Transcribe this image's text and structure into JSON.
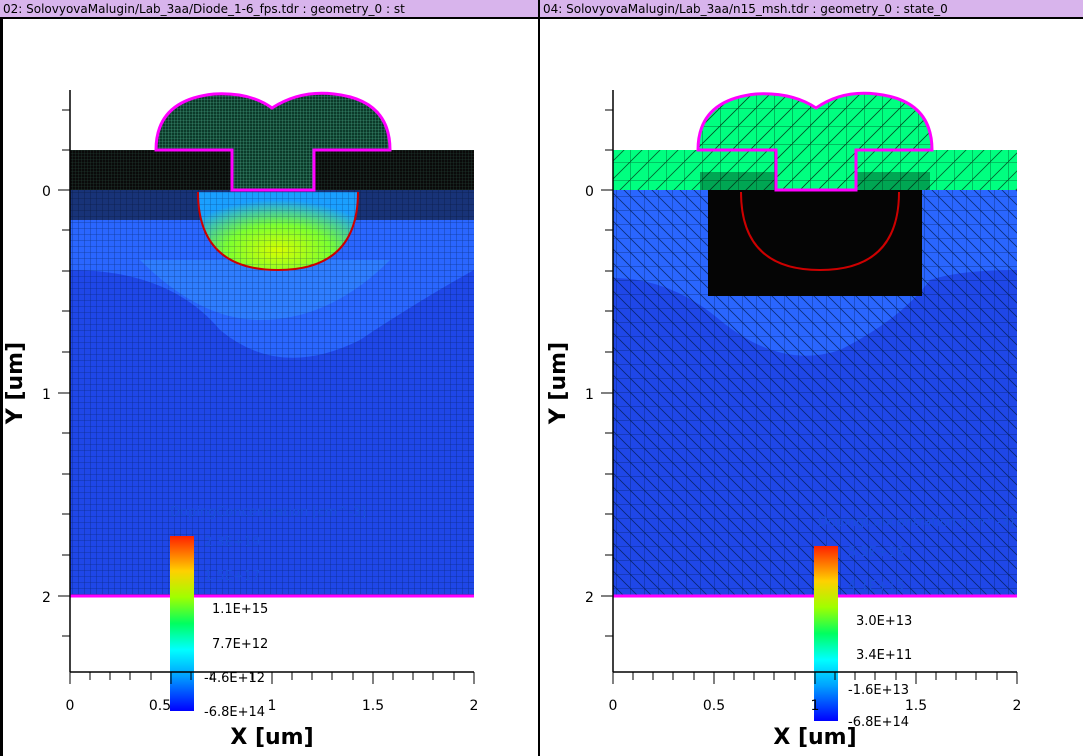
{
  "panels": [
    {
      "title": "02: SolovyovaMalugin/Lab_3aa/Diode_1-6_fps.tdr : geometry_0 : st",
      "x_axis": {
        "label": "X [um]",
        "ticks": [
          "0",
          "0.5",
          "1",
          "1.5",
          "2"
        ]
      },
      "y_axis": {
        "label": "Y [um]",
        "ticks": [
          "0",
          "1",
          "2"
        ]
      },
      "legend": {
        "title": "DopingConcentration [cm^-3]",
        "labels": [
          "2.3E+19",
          "1.5E+17",
          "1.1E+15",
          "7.7E+12",
          "-4.6E+12",
          "-6.8E+14"
        ]
      }
    },
    {
      "title": "04: SolovyovaMalugin/Lab_3aa/n15_msh.tdr : geometry_0 : state_0",
      "x_axis": {
        "label": "X [um]",
        "ticks": [
          "0",
          "0.5",
          "1",
          "1.5",
          "2"
        ]
      },
      "y_axis": {
        "label": "Y [um]",
        "ticks": [
          "0",
          "1",
          "2"
        ]
      },
      "legend": {
        "title": "DopingConcentration [cm^-3]",
        "labels": [
          "5.5E+18",
          "4.1E+15",
          "3.0E+13",
          "3.4E+11",
          "-1.6E+13",
          "-6.8E+14"
        ]
      }
    }
  ],
  "colors": {
    "titlebar": "#d8b4ec",
    "oxide": "#00ff7f",
    "substrate": "#0033ff",
    "contact_outline": "#ff00ff",
    "junction": "#cc0000"
  }
}
